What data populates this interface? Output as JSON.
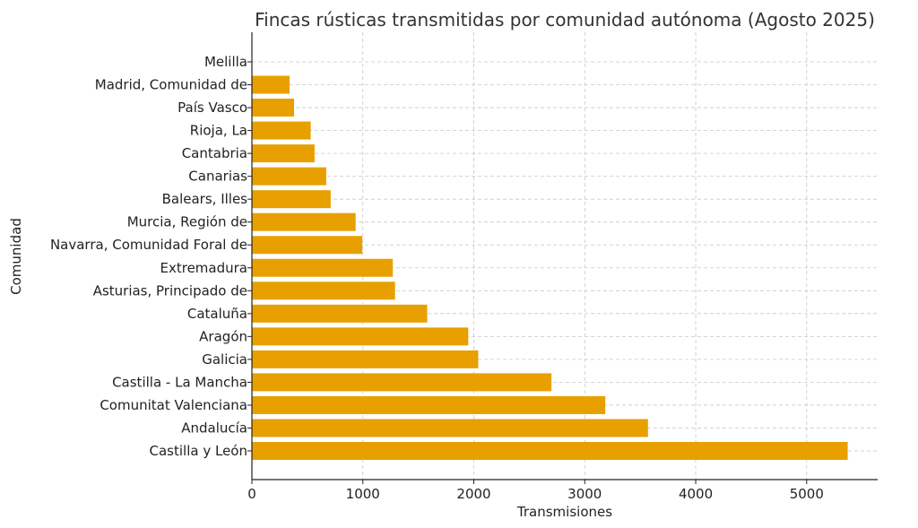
{
  "chart_data": {
    "type": "bar",
    "orientation": "horizontal",
    "title": "Fincas rústicas transmitidas por comunidad autónoma (Agosto 2025)",
    "xlabel": "Transmisiones",
    "ylabel": "Comunidad",
    "xlim": [
      0,
      5640
    ],
    "xticks": [
      0,
      1000,
      2000,
      3000,
      4000,
      5000
    ],
    "grid": true,
    "bar_color": "#E8A000",
    "categories": [
      "Castilla y León",
      "Andalucía",
      "Comunitat Valenciana",
      "Castilla - La Mancha",
      "Galicia",
      "Aragón",
      "Cataluña",
      "Asturias, Principado de",
      "Extremadura",
      "Navarra, Comunidad Foral de",
      "Murcia, Región de",
      "Balears, Illes",
      "Canarias",
      "Cantabria",
      "Rioja, La",
      "País Vasco",
      "Madrid, Comunidad de",
      "Melilla"
    ],
    "values": [
      5370,
      3570,
      3185,
      2700,
      2040,
      1950,
      1580,
      1290,
      1270,
      995,
      935,
      710,
      670,
      565,
      530,
      380,
      340,
      0
    ]
  }
}
